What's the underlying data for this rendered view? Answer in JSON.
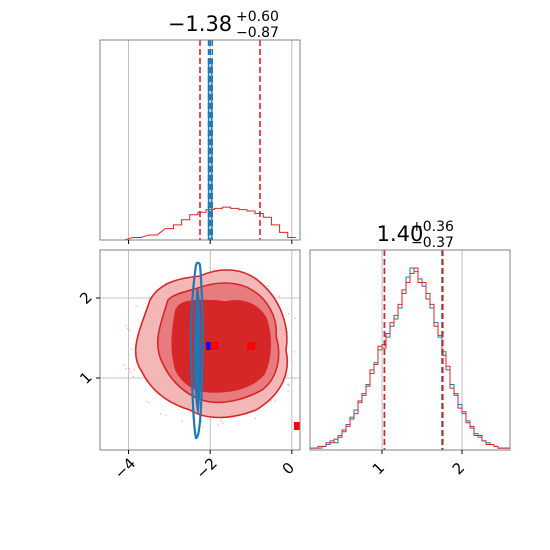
{
  "colors": {
    "red": "#d62728",
    "blue": "#1f77b4",
    "marker_red": "#ff0000",
    "marker_blue": "#0000ff",
    "grid": "#b0b0b0",
    "frame": "#808080",
    "red_fill_1": "#f3b7b8",
    "red_fill_2": "#e87b7d",
    "red_fill_3": "#d62728"
  },
  "chart_data": [
    {
      "type": "histogram",
      "panel": "param1-marginal",
      "title": {
        "main": "−1.38",
        "sup": "+0.60",
        "sub": "−0.87"
      },
      "xlim": [
        -4.7,
        0.2
      ],
      "grid": true,
      "quantile_lines": {
        "red": [
          -2.25,
          -1.38,
          -0.78
        ],
        "blue": [
          -2.04,
          -2.0,
          -1.95
        ]
      },
      "x": [
        -4.2,
        -3.8,
        -3.4,
        -3.0,
        -2.8,
        -2.6,
        -2.4,
        -2.2,
        -2.0,
        -1.8,
        -1.6,
        -1.4,
        -1.2,
        -1.0,
        -0.8,
        -0.6,
        -0.4,
        -0.2,
        0.0
      ],
      "series": [
        {
          "color": "red",
          "values": [
            0,
            0.02,
            0.04,
            0.09,
            0.12,
            0.16,
            0.2,
            0.22,
            0.24,
            0.25,
            0.26,
            0.25,
            0.24,
            0.23,
            0.21,
            0.18,
            0.12,
            0.06,
            0.02
          ]
        },
        {
          "color": "blue",
          "values": [
            0,
            0,
            0,
            0,
            0,
            0,
            0,
            0,
            3.5,
            0,
            0,
            0,
            0,
            0,
            0,
            0,
            0,
            0,
            0
          ]
        }
      ]
    },
    {
      "type": "contour",
      "panel": "param1-vs-param2",
      "xlim": [
        -4.7,
        0.2
      ],
      "ylim": [
        0.1,
        2.6
      ],
      "x_ticks": [
        "−4",
        "−2",
        "0"
      ],
      "x_tick_values": [
        -4,
        -2,
        0
      ],
      "y_ticks": [
        "1",
        "2"
      ],
      "y_tick_values": [
        1,
        2
      ],
      "grid": true,
      "markers": [
        {
          "color": "marker_red",
          "x": -1.0,
          "y": 1.4
        },
        {
          "color": "marker_red",
          "x": 0.15,
          "y": 0.4
        },
        {
          "color": "marker_blue",
          "x": -2.0,
          "y": 1.4
        },
        {
          "color": "marker_red",
          "x": -1.9,
          "y": 1.4
        }
      ]
    },
    {
      "type": "histogram",
      "panel": "param2-marginal",
      "title": {
        "main": "1.40",
        "sup": "+0.36",
        "sub": "−0.37"
      },
      "xlim": [
        0.1,
        2.6
      ],
      "x_ticks": [
        "1",
        "2"
      ],
      "x_tick_values": [
        1,
        2
      ],
      "grid": true,
      "quantile_lines": {
        "red": [
          1.03,
          1.4,
          1.76
        ],
        "blue": [
          1.03,
          1.4,
          1.75
        ]
      },
      "bin_start": 0.1,
      "bin_width": 0.05,
      "series": [
        {
          "color": "blue",
          "values": [
            1,
            1,
            1,
            2,
            3,
            5,
            4,
            8,
            10,
            14,
            17,
            22,
            26,
            30,
            36,
            42,
            48,
            55,
            58,
            62,
            68,
            72,
            78,
            86,
            95,
            100,
            98,
            94,
            90,
            86,
            78,
            70,
            62,
            54,
            44,
            36,
            30,
            25,
            20,
            16,
            12,
            9,
            7,
            5,
            4,
            3,
            2,
            1,
            1,
            1
          ]
        },
        {
          "color": "red",
          "values": [
            1,
            1,
            2,
            2,
            4,
            4,
            6,
            7,
            11,
            13,
            18,
            20,
            27,
            31,
            35,
            44,
            47,
            57,
            56,
            64,
            70,
            74,
            80,
            88,
            92,
            97,
            100,
            92,
            92,
            83,
            80,
            68,
            63,
            52,
            46,
            34,
            31,
            23,
            21,
            15,
            13,
            8,
            8,
            5,
            3,
            3,
            2,
            1,
            1,
            1
          ]
        }
      ]
    }
  ]
}
